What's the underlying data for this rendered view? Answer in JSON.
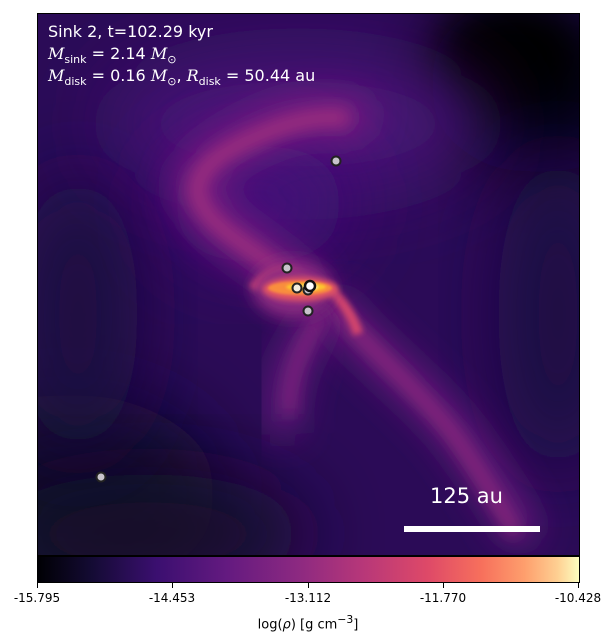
{
  "panel": {
    "title": "Sink 2, t=102.29 kyr",
    "mass_sink": {
      "symbol": "M",
      "subscript": "sink",
      "equals": " = ",
      "value": "2.14",
      "unit": "M",
      "unit_subscript": "⊙"
    },
    "mass_disk": {
      "symbol": "M",
      "subscript": "disk",
      "equals": " = ",
      "value": "0.16",
      "unit": "M",
      "unit_subscript": "⊙",
      "separator": ", "
    },
    "radius_disk": {
      "symbol": "R",
      "subscript": "disk",
      "equals": " = ",
      "value": "50.44",
      "unit": "au"
    },
    "scale_bar_label": "125 au",
    "sink_count": 7
  },
  "colorbar": {
    "colormap": "inferno",
    "colors": [
      "#000004",
      "#140b34",
      "#3b0f70",
      "#641a80",
      "#8c2981",
      "#b73779",
      "#de4968",
      "#f7705c",
      "#fe9f6d",
      "#fecf92",
      "#fcfdbf"
    ],
    "min": -15.795,
    "max": -10.428,
    "ticks": [
      "-15.795",
      "-14.453",
      "-13.112",
      "-11.770",
      "-10.428"
    ],
    "label_prefix": "log(",
    "label_rho": "ρ",
    "label_mid": ") [g cm",
    "label_exp": "−3",
    "label_suffix": "]"
  }
}
